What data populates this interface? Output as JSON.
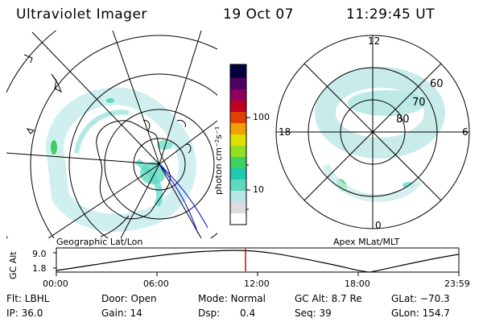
{
  "header": {
    "instrument": "Ultraviolet Imager",
    "date": "19 Oct 07",
    "time": "11:29:45 UT"
  },
  "colorbar": {
    "unit_label": "photon cm⁻²s⁻¹",
    "tick_100": "100",
    "tick_10": "10",
    "colors": [
      "#ffffff",
      "#dcdcdc",
      "#b8e6e6",
      "#60d8c0",
      "#20c8b0",
      "#40d060",
      "#90e020",
      "#e0e000",
      "#f0a000",
      "#e04000",
      "#c00020",
      "#900060",
      "#500060",
      "#000040"
    ]
  },
  "geo_map": {
    "caption": "Geographic Lat/Lon"
  },
  "polar_map": {
    "caption": "Apex MLat/MLT",
    "mlt_12": "12",
    "mlt_18": "18",
    "mlt_6": "6",
    "mlt_0": "0",
    "lat_60": "60",
    "lat_70": "70",
    "lat_80": "80"
  },
  "timeline": {
    "ylabel": "GC Alt",
    "ymax": "9.0",
    "ymin": "1.8",
    "ticks": [
      "00:00",
      "06:00",
      "12:00",
      "18:00",
      "23:59"
    ],
    "marker_color": "#e00000"
  },
  "footer": {
    "flt": "Flt: LBHL",
    "ip": "IP: 36.0",
    "door": "Door: Open",
    "gain": "Gain: 14",
    "mode": "Mode: Normal",
    "dsp_label": "Dsp:",
    "dsp_value": "0.4",
    "gc_alt": "GC Alt: 8.7 Re",
    "seq": "Seq: 39",
    "glat": "GLat: −70.3",
    "glon": "GLon: 154.7"
  }
}
